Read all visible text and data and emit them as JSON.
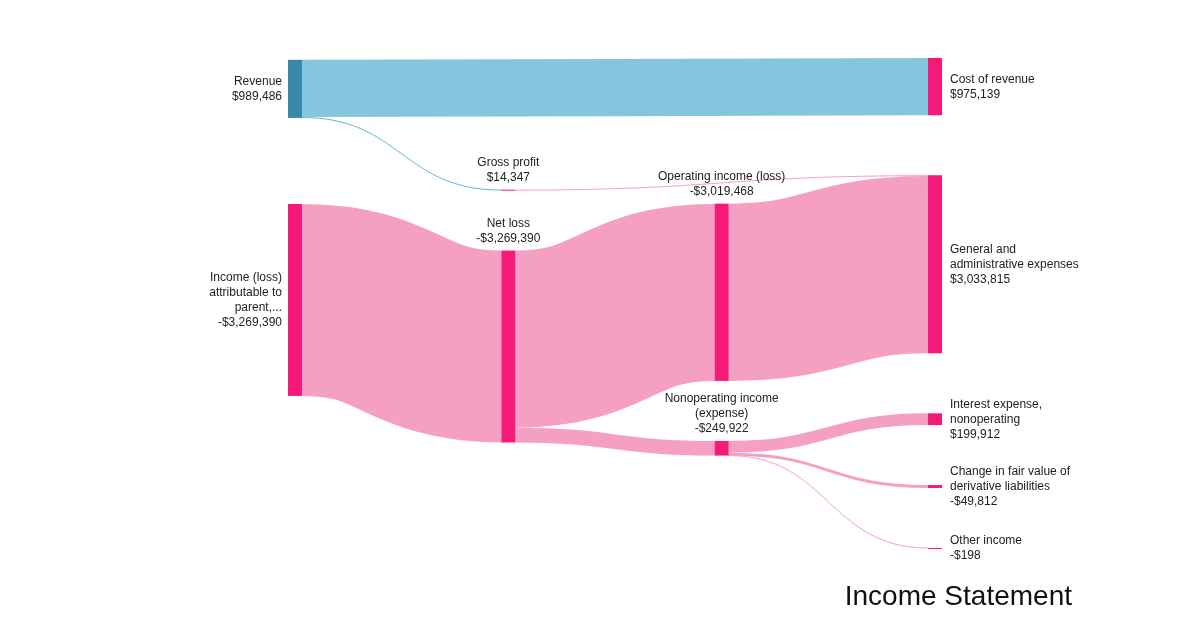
{
  "chart_data": {
    "type": "other",
    "title": "Income Statement",
    "categories": [
      "Income (loss) attributable to parent,...",
      "Revenue",
      "Net loss",
      "Nonoperating income (expense)",
      "Operating income (loss)",
      "Gross profit",
      "Cost of revenue",
      "Change in fair value of derivative liabilities",
      "Interest expense, nonoperating",
      "Other income",
      "General and administrative expenses"
    ],
    "values": [
      -3269390,
      989486,
      -3269390,
      -249922,
      -3019468,
      14347,
      975139,
      -49812,
      199912,
      -198,
      3033815
    ],
    "value_labels": [
      "-$3,269,390",
      "$989,486",
      "-$3,269,390",
      "-$249,922",
      "-$3,019,468",
      "$14,347",
      "$975,139",
      "-$49,812",
      "$199,912",
      "-$198",
      "$3,033,815"
    ],
    "colors": [
      "#f5197a",
      "#3a88a8",
      "#f5197a",
      "#f5197a",
      "#f5197a",
      "#f5197a",
      "#f5197a",
      "#f5197a",
      "#f5197a",
      "#f5197a",
      "#f5197a"
    ]
  }
}
